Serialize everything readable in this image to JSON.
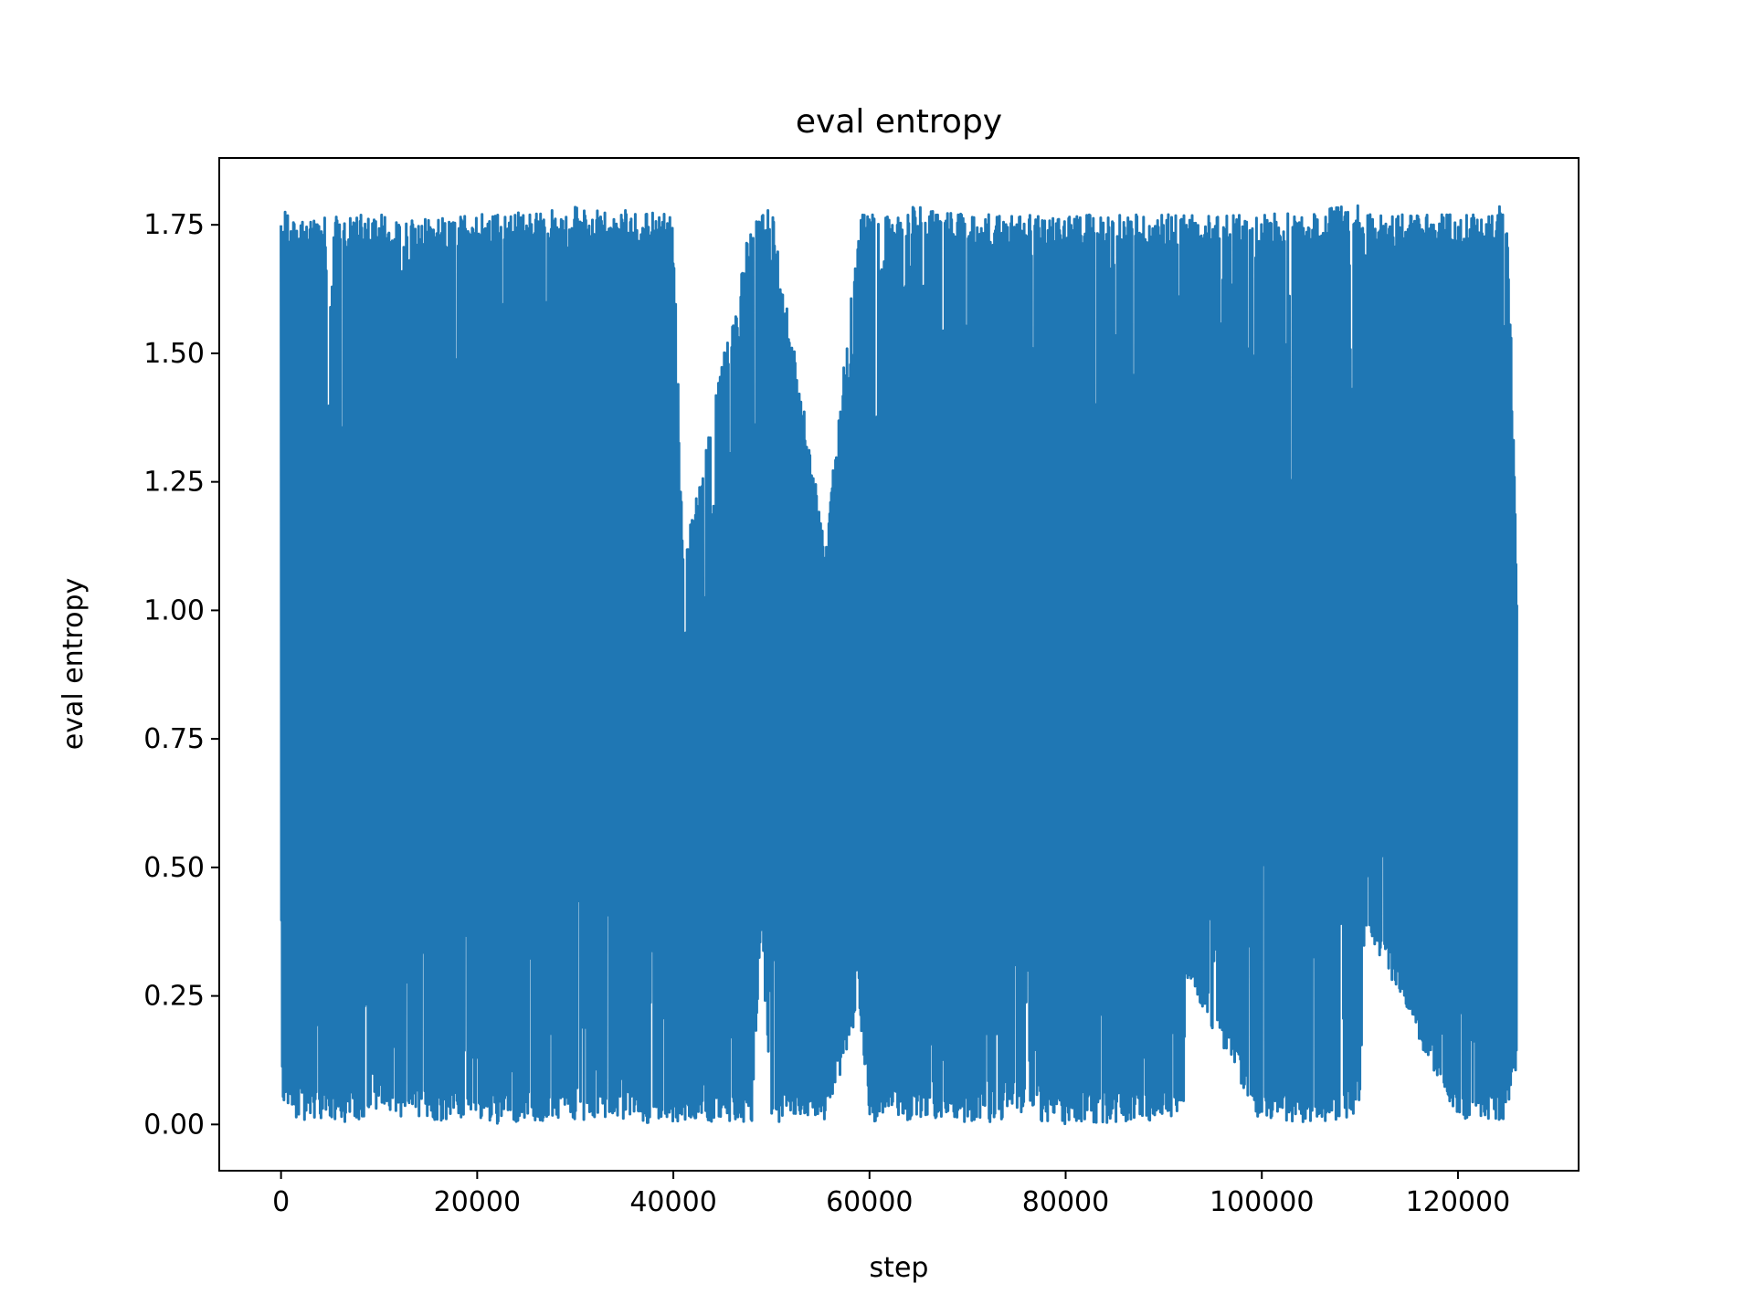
{
  "chart_data": {
    "type": "line",
    "title": "eval entropy",
    "xlabel": "step",
    "ylabel": "eval entropy",
    "xlim": [
      -6300,
      132300
    ],
    "ylim": [
      -0.09,
      1.88
    ],
    "xticks": [
      {
        "value": 0,
        "label": "0"
      },
      {
        "value": 20000,
        "label": "20000"
      },
      {
        "value": 40000,
        "label": "40000"
      },
      {
        "value": 60000,
        "label": "60000"
      },
      {
        "value": 80000,
        "label": "80000"
      },
      {
        "value": 100000,
        "label": "100000"
      },
      {
        "value": 120000,
        "label": "120000"
      }
    ],
    "yticks": [
      {
        "value": 0.0,
        "label": "0.00"
      },
      {
        "value": 0.25,
        "label": "0.25"
      },
      {
        "value": 0.5,
        "label": "0.50"
      },
      {
        "value": 0.75,
        "label": "0.75"
      },
      {
        "value": 1.0,
        "label": "1.00"
      },
      {
        "value": 1.25,
        "label": "1.25"
      },
      {
        "value": 1.5,
        "label": "1.50"
      },
      {
        "value": 1.75,
        "label": "1.75"
      }
    ],
    "grid": false,
    "legend": "none",
    "series": [
      {
        "color": "#1f77b4",
        "x_range": [
          0,
          126000
        ],
        "y_range": [
          0.0,
          1.79
        ],
        "envelope": {
          "x": [
            0,
            500,
            2000,
            6000,
            10000,
            15000,
            20000,
            30000,
            40000,
            41000,
            48000,
            49000,
            50000,
            55500,
            59000,
            60000,
            65000,
            70000,
            76000,
            80000,
            92000,
            92200,
            100000,
            110000,
            110500,
            120000,
            125000,
            125500,
            126000
          ],
          "upper": [
            1.79,
            1.78,
            1.76,
            1.77,
            1.77,
            1.76,
            1.77,
            1.79,
            1.77,
            1.1,
            1.77,
            1.77,
            1.79,
            1.13,
            1.77,
            1.77,
            1.79,
            1.77,
            1.77,
            1.77,
            1.77,
            1.77,
            1.77,
            1.79,
            1.77,
            1.77,
            1.79,
            1.48,
            1.04
          ],
          "lower": [
            0.0,
            0.02,
            0.01,
            0.0,
            0.02,
            0.01,
            0.0,
            0.01,
            0.0,
            0.01,
            0.0,
            0.36,
            0.0,
            0.01,
            0.21,
            0.0,
            0.01,
            0.0,
            0.01,
            0.0,
            0.01,
            0.29,
            0.0,
            0.01,
            0.39,
            0.0,
            0.01,
            0.1,
            0.1
          ]
        }
      }
    ]
  }
}
